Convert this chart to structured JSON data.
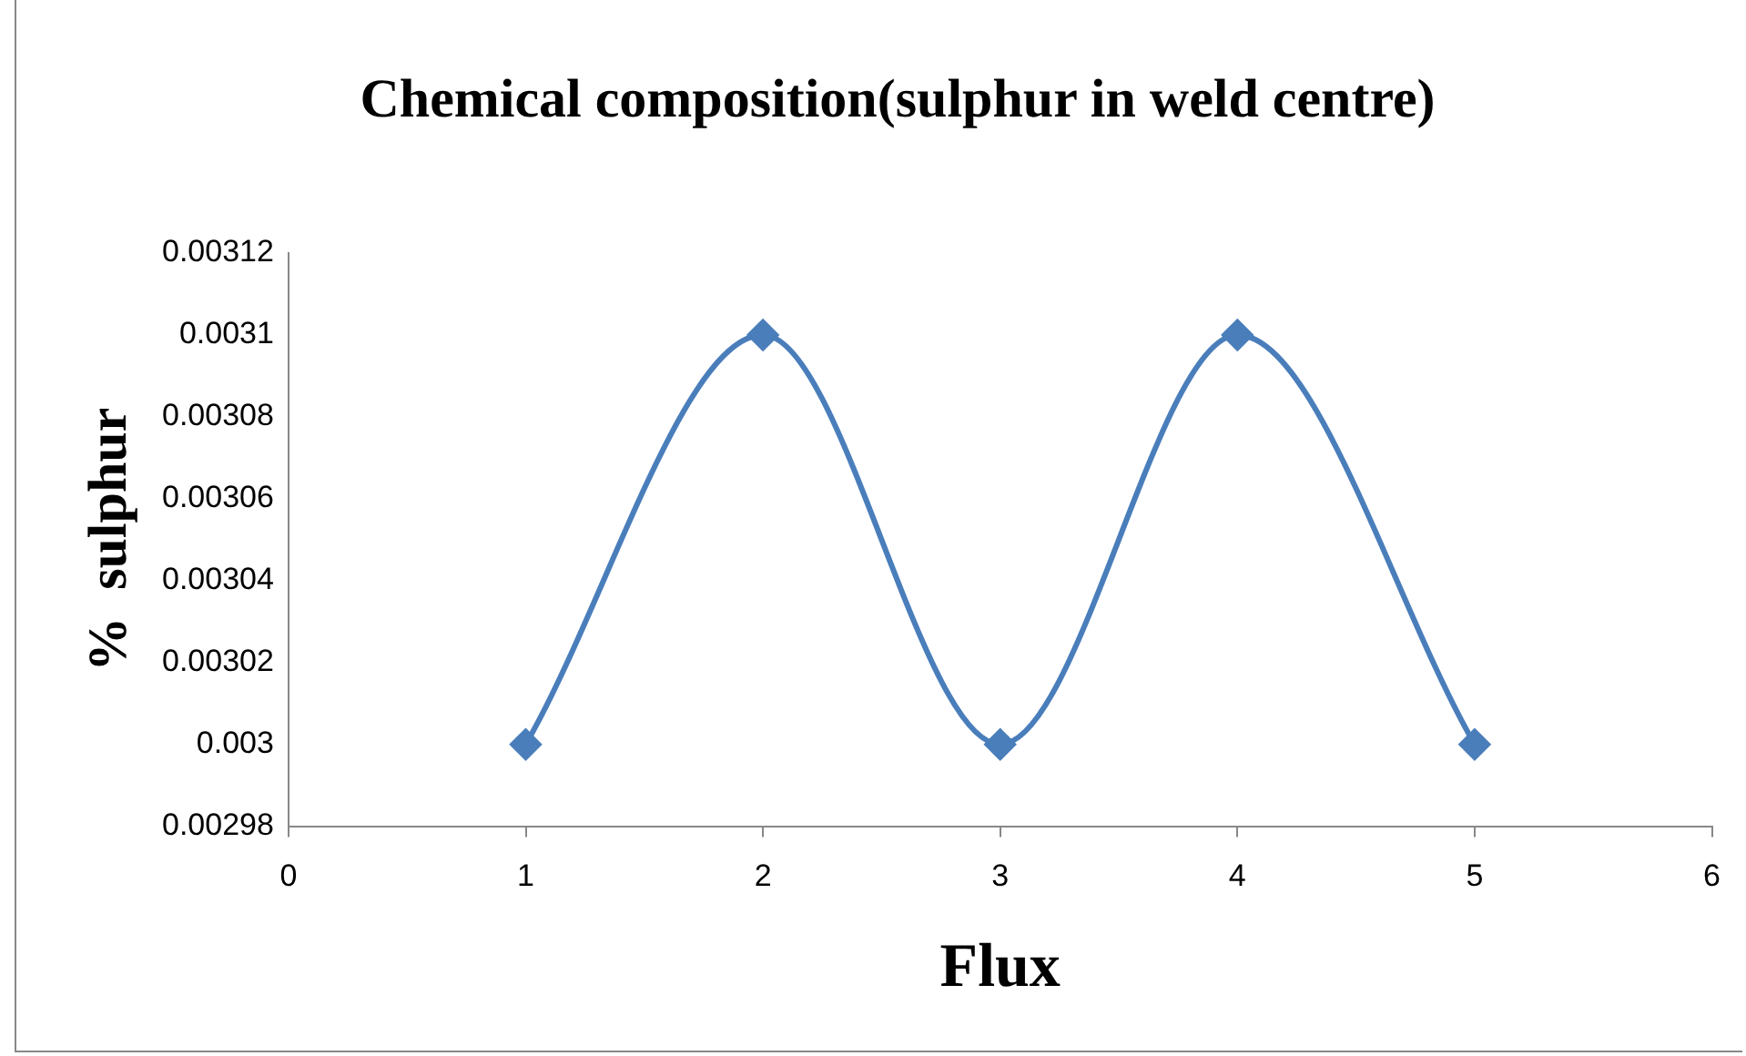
{
  "chart_data": {
    "type": "line",
    "title": "Chemical composition(sulphur in weld centre)",
    "xlabel": "Flux",
    "ylabel": "%  sulphur",
    "x": [
      1,
      2,
      3,
      4,
      5
    ],
    "series": [
      {
        "color": "#4a7ebb",
        "values": [
          0.003,
          0.0031,
          0.003,
          0.0031,
          0.003
        ]
      }
    ],
    "xlim": [
      0,
      6
    ],
    "xticks": [
      0,
      1,
      2,
      3,
      4,
      5,
      6
    ],
    "ylim": [
      0.00298,
      0.00312
    ],
    "yticks": [
      0.00298,
      0.003,
      0.00302,
      0.00304,
      0.00306,
      0.00308,
      0.0031,
      0.00312
    ],
    "grid": false,
    "legend": false,
    "marker": "diamond",
    "line_style": "solid"
  }
}
